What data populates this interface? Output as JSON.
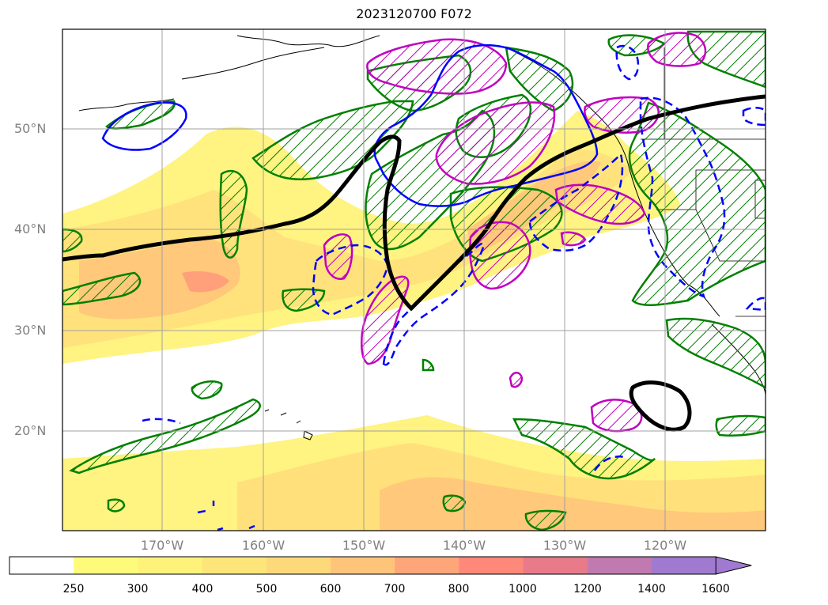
{
  "title": "2023120700 F072",
  "lat_labels": [
    "50°N",
    "40°N",
    "30°N",
    "20°N"
  ],
  "lon_labels": [
    "170°W",
    "160°W",
    "150°W",
    "140°W",
    "130°W",
    "120°W"
  ],
  "colorbar": {
    "ticks": [
      "250",
      "300",
      "400",
      "500",
      "600",
      "700",
      "800",
      "1000",
      "1200",
      "1400",
      "1600"
    ],
    "colors": [
      "#ffffff",
      "#fefb7a",
      "#fef27a",
      "#fee57a",
      "#fed97a",
      "#fec57a",
      "#fea57a",
      "#fe887a",
      "#e87a8a",
      "#c07ab0",
      "#a07ad0"
    ]
  },
  "legend_colors": {
    "filled_low": "#fff27a",
    "filled_mid": "#ffcc7a",
    "filled_high": "#ffa07a",
    "contour_black": "#000000",
    "contour_green": "#008000",
    "contour_blue": "#0000ff",
    "contour_magenta": "#c000c0"
  }
}
